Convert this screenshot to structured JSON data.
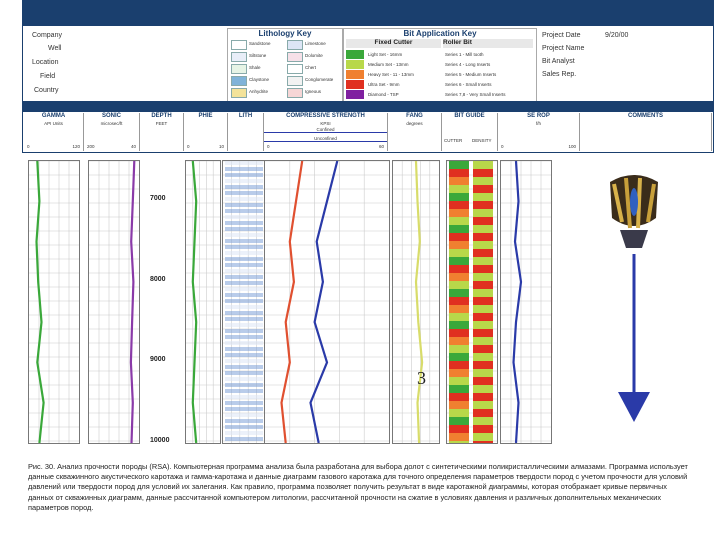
{
  "header": {
    "left_fields": [
      "Company",
      "Well",
      "Location",
      "Field",
      "Country"
    ],
    "right_fields": [
      "Project Date",
      "Project Name",
      "Bit Analyst",
      "Sales Rep."
    ],
    "project_date_value": "9/20/00"
  },
  "lithology_key": {
    "title": "Lithology Key",
    "items": [
      {
        "name": "Sandstone",
        "color": "#ffffff"
      },
      {
        "name": "Siltstone",
        "color": "#e8eef8"
      },
      {
        "name": "Shale",
        "color": "#e6f4e6"
      },
      {
        "name": "Claystone",
        "color": "#7fb3d9"
      },
      {
        "name": "Anhydrite",
        "color": "#f3e39a"
      },
      {
        "name": "Limestone",
        "color": "#dde6f6"
      },
      {
        "name": "Dolomite",
        "color": "#f6e0e8"
      },
      {
        "name": "Chert",
        "color": "#ffffff"
      },
      {
        "name": "Conglomerate",
        "color": "#f2f2f2"
      },
      {
        "name": "Igneous",
        "color": "#f6d6d6"
      }
    ]
  },
  "bit_key": {
    "title": "Bit Application Key",
    "fixed_title": "Fixed Cutter",
    "roller_title": "Roller Bit",
    "fixed": [
      {
        "label": "Light Set - 16mm",
        "color": "#3aa83a"
      },
      {
        "label": "Medium Set - 13mm",
        "color": "#b8d84a"
      },
      {
        "label": "Heavy Set - 11 - 13mm",
        "color": "#f08030"
      },
      {
        "label": "Ultra Set - 9mm",
        "color": "#e03020"
      },
      {
        "label": "Diamond - TSP",
        "color": "#8020a0"
      }
    ],
    "roller": [
      "Series 1 - Mill tooth",
      "Series 4 - Long Inserts",
      "Series 5 - Medium Inserts",
      "Series 6 - Small Inserts",
      "Series 7,8 - Very Small Inserts"
    ]
  },
  "track_headers": [
    {
      "name": "GAMMA",
      "unit": "API Units",
      "min": "0",
      "max": "120"
    },
    {
      "name": "SONIC",
      "unit": "microsec/ft",
      "min": "200",
      "max": "40"
    },
    {
      "name": "DEPTH",
      "unit": "FEET",
      "min": "",
      "max": ""
    },
    {
      "name": "PHIE",
      "unit": "",
      "min": "0",
      "max": "10"
    },
    {
      "name": "LITH",
      "unit": "",
      "min": "",
      "max": ""
    },
    {
      "name": "COMPRESSIVE STRENGTH",
      "unit": "KPSI",
      "min": "0",
      "max": "60"
    },
    {
      "name": "FANG",
      "unit": "degrees",
      "min": "",
      "max": ""
    },
    {
      "name": "BIT GUIDE",
      "unit": "",
      "min": "",
      "max": ""
    },
    {
      "name": "SE ROP",
      "unit": "f/h",
      "min": "0",
      "max": "100"
    },
    {
      "name": "COMMENTS",
      "unit": "",
      "min": "",
      "max": ""
    }
  ],
  "strength_subs": [
    "Confined",
    "Unconfined"
  ],
  "bit_guide_subs": [
    "CUTTER",
    "DENSITY"
  ],
  "marker_label": "3",
  "caption": "Рис. 30. Анализ прочности породы (RSA). Компьютерная программа анализа была разработана для выбора долот с синтетическими поликристаллическими алмазами. Программа использует данные скважинного акустического каротажа и гамма-каротажа и данные диаграмм газового каротажа для точного определения параметров твердости пород с учетом прочности для условий давлений или твердости пород для условий их залегания. Как правило, программа позволяет получить результат в виде каротажной диаграммы, которая отображает кривые первичных данных от скважинных диаграмм, данные рассчитанной компьютером литологии, рассчитанной прочности на сжатие в условиях давления и различных дополнительных механических параметров пород.",
  "chart_data": {
    "type": "line",
    "title": "",
    "ylabel": "DEPTH",
    "ylim": [
      6500,
      10000
    ],
    "depth_ticks": [
      "7000",
      "8000",
      "9000",
      "10000"
    ],
    "tracks": [
      {
        "name": "GAMMA",
        "color": "#3aa83a",
        "xlim": [
          0,
          120
        ],
        "depth": [
          6500,
          7000,
          7500,
          8000,
          8500,
          9000,
          9500,
          10000
        ],
        "values": [
          20,
          25,
          18,
          22,
          30,
          20,
          35,
          25
        ]
      },
      {
        "name": "SONIC",
        "color": "#8a3aa8",
        "xlim": [
          200,
          40
        ],
        "depth": [
          6500,
          7000,
          7500,
          8000,
          8500,
          9000,
          9500,
          10000
        ],
        "values": [
          55,
          60,
          65,
          58,
          62,
          66,
          60,
          64
        ]
      },
      {
        "name": "PHIE",
        "color": "#3aa83a",
        "xlim": [
          0,
          10
        ],
        "depth": [
          6500,
          7000,
          7500,
          8000,
          8500,
          9000,
          9500,
          10000
        ],
        "values": [
          2,
          3,
          2.5,
          2,
          3,
          2.5,
          2,
          3
        ]
      },
      {
        "name": "Confined",
        "color": "#2a3aa8",
        "xlim": [
          0,
          60
        ],
        "depth": [
          6500,
          7000,
          7500,
          8000,
          8500,
          9000,
          9500,
          10000
        ],
        "values": [
          35,
          30,
          25,
          28,
          24,
          30,
          22,
          26
        ]
      },
      {
        "name": "Unconfined",
        "color": "#e05030",
        "xlim": [
          0,
          60
        ],
        "depth": [
          6500,
          7000,
          7500,
          8000,
          8500,
          9000,
          9500,
          10000
        ],
        "values": [
          18,
          15,
          12,
          14,
          10,
          12,
          8,
          10
        ]
      },
      {
        "name": "FANG",
        "color": "#d8dc6a",
        "xlim": [
          0,
          60
        ],
        "depth": [
          6500,
          7000,
          7500,
          8000,
          8500,
          9000,
          9500,
          10000
        ],
        "values": [
          30,
          32,
          35,
          30,
          33,
          38,
          32,
          34
        ]
      },
      {
        "name": "SE ROP",
        "color": "#2a3aa8",
        "xlim": [
          0,
          100
        ],
        "depth": [
          6500,
          7000,
          7500,
          8000,
          8500,
          9000,
          9500,
          10000
        ],
        "values": [
          30,
          35,
          28,
          40,
          30,
          25,
          35,
          30
        ]
      }
    ]
  }
}
